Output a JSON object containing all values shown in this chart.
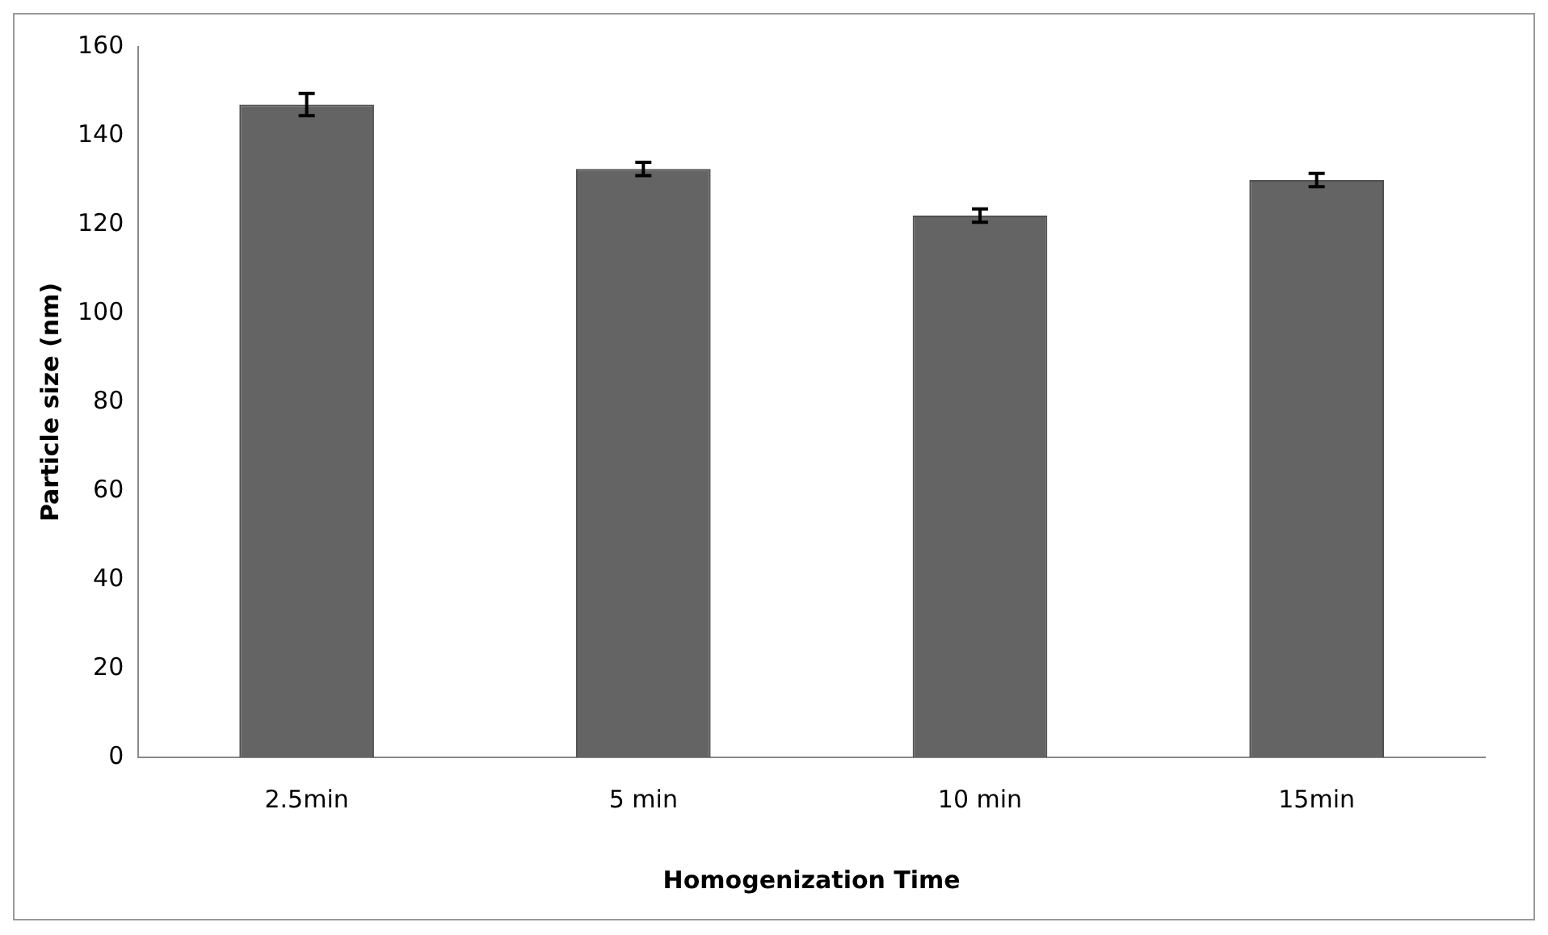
{
  "chart_data": {
    "type": "bar",
    "xlabel": "Homogenization Time",
    "ylabel": "Particle size (nm)",
    "categories": [
      "2.5min",
      "5 min",
      "10 min",
      "15min"
    ],
    "values": [
      147,
      132.5,
      122,
      130
    ],
    "errors": [
      2.5,
      1.5,
      1.5,
      1.5
    ],
    "color": "#646464",
    "ylim": [
      0,
      160
    ],
    "yticks": [
      0,
      20,
      40,
      60,
      80,
      100,
      120,
      140,
      160
    ],
    "grid": false,
    "legend": false
  }
}
